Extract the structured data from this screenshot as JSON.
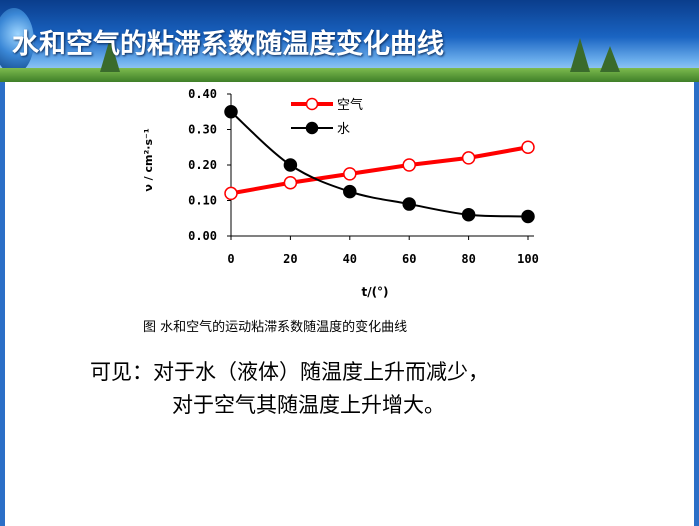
{
  "slide": {
    "title": "水和空气的粘滞系数随温度变化曲线",
    "caption": "图  水和空气的运动粘滞系数随温度的变化曲线",
    "conclusion_line1": "可见：对于水（液体）随温度上升而减少，",
    "conclusion_line2": "对于空气其随温度上升增大。"
  },
  "chart_data": {
    "type": "line",
    "xlabel": "t/(°)",
    "ylabel": "ν / cm²·s⁻¹",
    "x": [
      0,
      20,
      40,
      60,
      80,
      100
    ],
    "xticks": [
      "0",
      "20",
      "40",
      "60",
      "80",
      "100"
    ],
    "yticks": [
      "0.00",
      "0.10",
      "0.20",
      "0.30",
      "0.40"
    ],
    "xlim": [
      0,
      100
    ],
    "ylim": [
      0,
      0.4
    ],
    "grid": false,
    "legend": "top",
    "series": [
      {
        "name": "空气",
        "values": [
          0.12,
          0.15,
          0.175,
          0.2,
          0.22,
          0.25
        ],
        "line_color": "#ff0000",
        "marker": "open-circle"
      },
      {
        "name": "水",
        "values": [
          0.35,
          0.2,
          0.125,
          0.09,
          0.06,
          0.055
        ],
        "line_color": "#000000",
        "marker": "filled-circle"
      }
    ]
  }
}
